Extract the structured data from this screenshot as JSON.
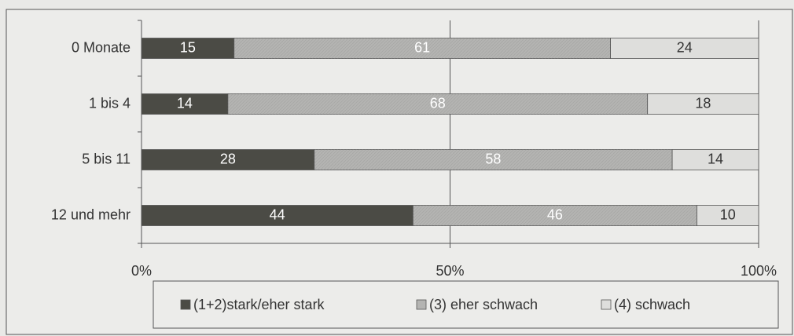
{
  "chart_data": {
    "type": "bar",
    "orientation": "horizontal",
    "stacked": true,
    "categories": [
      "0 Monate",
      "1 bis 4",
      "5 bis 11",
      "12 und mehr"
    ],
    "series": [
      {
        "name": "(1+2)stark/eher stark",
        "color": "#4b4b45",
        "values": [
          15,
          14,
          28,
          44
        ]
      },
      {
        "name": "(3) eher schwach",
        "color": "#b4b4b2",
        "values": [
          61,
          68,
          58,
          46
        ]
      },
      {
        "name": "(4) schwach",
        "color": "#dededc",
        "values": [
          24,
          18,
          14,
          10
        ]
      }
    ],
    "xlim": [
      0,
      100
    ],
    "xticks": [
      {
        "value": 0,
        "label": "0%"
      },
      {
        "value": 50,
        "label": "50%"
      },
      {
        "value": 100,
        "label": "100%"
      }
    ],
    "grid": true,
    "legend": "bottom"
  }
}
